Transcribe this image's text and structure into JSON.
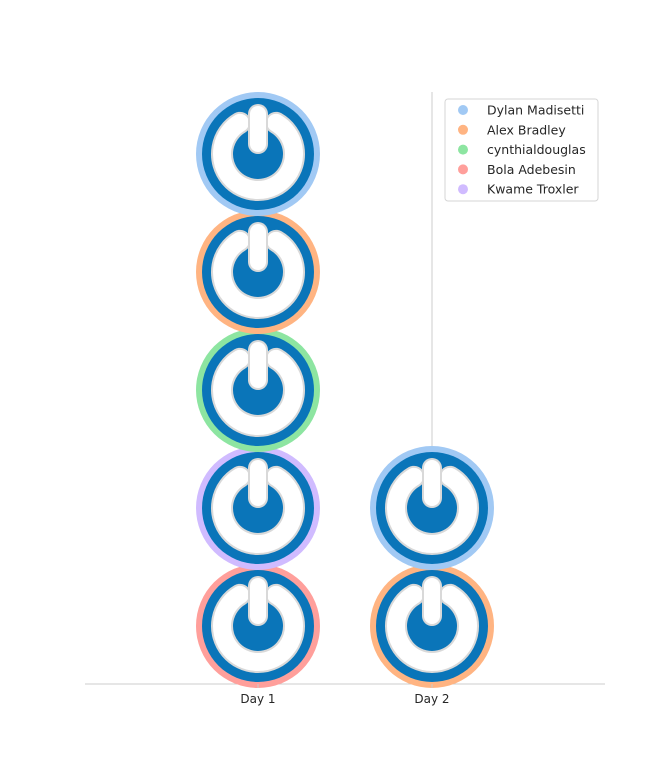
{
  "chart_data": {
    "type": "scatter",
    "title": "",
    "xlabel": "",
    "ylabel": "",
    "categories": [
      "Day 1",
      "Day 2"
    ],
    "marker_icon": "power-button-logo-icon",
    "grid": false,
    "legend_position": "top-right",
    "series": [
      {
        "name": "Dylan Madisetti",
        "color": "#a1c9f4",
        "days": [
          "Day 1",
          "Day 2"
        ]
      },
      {
        "name": "Alex Bradley",
        "color": "#ffb482",
        "days": [
          "Day 1",
          "Day 2"
        ]
      },
      {
        "name": "cynthialdouglas",
        "color": "#8de5a1",
        "days": [
          "Day 1"
        ]
      },
      {
        "name": "Bola Adebesin",
        "color": "#ff9f9b",
        "days": [
          "Day 1"
        ]
      },
      {
        "name": "Kwame Troxler",
        "color": "#d0bbff",
        "days": [
          "Day 1"
        ]
      }
    ],
    "stacks": [
      {
        "category": "Day 1",
        "markers": [
          "Bola Adebesin",
          "Kwame Troxler",
          "cynthialdouglas",
          "Alex Bradley",
          "Dylan Madisetti"
        ]
      },
      {
        "category": "Day 2",
        "markers": [
          "Alex Bradley",
          "Dylan Madisetti"
        ]
      }
    ],
    "colors": {
      "icon_blue": "#0a75b9",
      "icon_white": "#ffffff",
      "axis": "#cccccc"
    }
  }
}
